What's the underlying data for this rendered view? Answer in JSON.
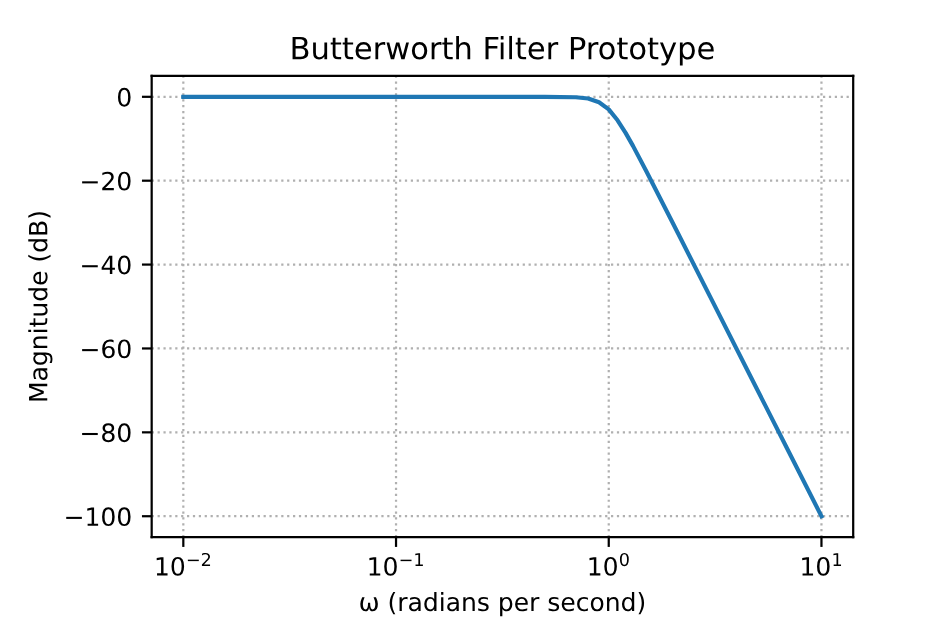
{
  "chart_data": {
    "type": "line",
    "title": "Butterworth Filter Prototype",
    "xlabel": "ω (radians per second)",
    "ylabel": "Magnitude (dB)",
    "log": "x",
    "grid": true,
    "line_style": "solid",
    "marker": "none",
    "x": [
      0.01,
      0.03,
      0.1,
      0.3,
      0.5,
      0.7,
      0.8,
      0.9,
      1.0,
      1.1,
      1.2,
      1.3,
      1.5,
      2,
      3,
      5,
      7,
      10
    ],
    "series": [
      {
        "color": "#1f77b4",
        "values": [
          0,
          0,
          0,
          0,
          0,
          -0.1,
          -0.4,
          -1.3,
          -3.0,
          -5.6,
          -8.6,
          -11.7,
          -17.7,
          -30.1,
          -47.7,
          -69.9,
          -84.5,
          -100
        ]
      }
    ],
    "xlim": [
      0.0071,
      14.1
    ],
    "ylim": [
      -105,
      5
    ],
    "xticks": [
      {
        "value": 0.01,
        "label": "10$^{−2}$"
      },
      {
        "value": 0.1,
        "label": "10$^{−1}$"
      },
      {
        "value": 1,
        "label": "10$^{0}$"
      },
      {
        "value": 10,
        "label": "10$^{1}$"
      }
    ],
    "yticks": [
      {
        "value": -100,
        "label": "−100"
      },
      {
        "value": -80,
        "label": "−80"
      },
      {
        "value": -60,
        "label": "−60"
      },
      {
        "value": -40,
        "label": "−40"
      },
      {
        "value": -20,
        "label": "−20"
      },
      0
    ]
  }
}
